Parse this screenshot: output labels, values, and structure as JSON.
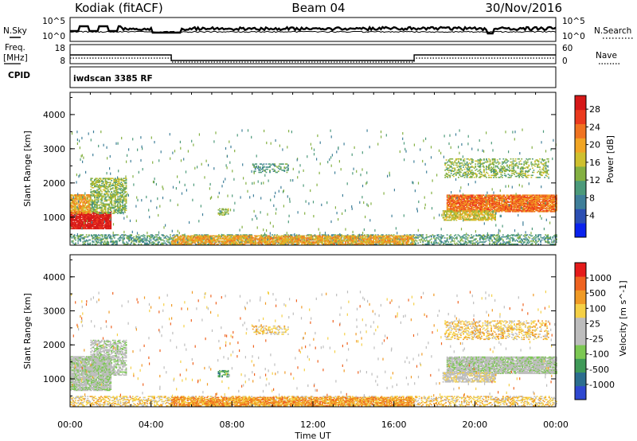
{
  "header": {
    "station": "Kodiak (fitACF)",
    "beam": "Beam 04",
    "date": "30/Nov/2016"
  },
  "noise_panel": {
    "left_label": "N.Sky",
    "right_label": "N.Search",
    "left_ticks": [
      "10^5",
      "10^0"
    ],
    "right_ticks": [
      "10^5",
      "10^0"
    ]
  },
  "freq_panel": {
    "left_label_1": "Freq.",
    "left_label_2": "[MHz]",
    "right_label": "Nave",
    "left_ticks": [
      "18",
      "8"
    ],
    "right_ticks": [
      "60",
      "0"
    ],
    "freq_steps": [
      {
        "start_h": 0,
        "end_h": 5,
        "level": "high"
      },
      {
        "start_h": 5,
        "end_h": 17,
        "level": "low"
      },
      {
        "start_h": 17,
        "end_h": 24,
        "level": "high"
      }
    ]
  },
  "cpid_panel": {
    "label": "CPID",
    "program": "iwdscan 3385 RF"
  },
  "chart_data": [
    {
      "type": "heatmap",
      "name": "Power",
      "ylabel": "Slant Range [km]",
      "colorbar_label": "Power [dB]",
      "xlim": [
        0,
        24
      ],
      "ylim": [
        180,
        4650
      ],
      "yticks": [
        "1000",
        "2000",
        "3000",
        "4000"
      ],
      "colorbar_ticks": [
        "28",
        "24",
        "20",
        "16",
        "12",
        "8",
        "4"
      ],
      "colorbar_colors": [
        "#0a22ee",
        "#2c4fb3",
        "#3f7f9a",
        "#4c9a7a",
        "#84b042",
        "#cfc02e",
        "#f1a524",
        "#f07321",
        "#eb3a1e",
        "#d61818"
      ],
      "regions": [
        {
          "t0": 0.0,
          "t1": 2.0,
          "r0": 650,
          "r1": 1150,
          "level": 9,
          "density": 0.95
        },
        {
          "t0": 0.0,
          "t1": 1.0,
          "r0": 1100,
          "r1": 1650,
          "level": 6,
          "density": 0.8
        },
        {
          "t0": 1.0,
          "t1": 2.8,
          "r0": 1100,
          "r1": 2150,
          "level": 4,
          "density": 0.6
        },
        {
          "t0": 0.0,
          "t1": 24.0,
          "r0": 200,
          "r1": 500,
          "level": 3,
          "density": 0.45
        },
        {
          "t0": 5.0,
          "t1": 17.0,
          "r0": 200,
          "r1": 450,
          "level": 6,
          "density": 0.7
        },
        {
          "t0": 18.6,
          "t1": 24.0,
          "r0": 1150,
          "r1": 1650,
          "level": 7,
          "density": 0.9
        },
        {
          "t0": 18.4,
          "t1": 21.0,
          "r0": 900,
          "r1": 1200,
          "level": 5,
          "density": 0.7
        },
        {
          "t0": 18.5,
          "t1": 23.6,
          "r0": 2150,
          "r1": 2700,
          "level": 4,
          "density": 0.35
        },
        {
          "t0": 9.0,
          "t1": 10.8,
          "r0": 2300,
          "r1": 2550,
          "level": 3,
          "density": 0.4
        },
        {
          "t0": 7.3,
          "t1": 7.8,
          "r0": 1050,
          "r1": 1250,
          "level": 4,
          "density": 0.6
        }
      ]
    },
    {
      "type": "heatmap",
      "name": "Velocity",
      "ylabel": "Slant Range [km]",
      "colorbar_label": "Velocity [m s^-1]",
      "xlabel": "Time UT",
      "xlim": [
        0,
        24
      ],
      "ylim": [
        180,
        4650
      ],
      "xticks": [
        "00:00",
        "04:00",
        "08:00",
        "12:00",
        "16:00",
        "20:00",
        "00:00"
      ],
      "yticks": [
        "1000",
        "2000",
        "3000",
        "4000"
      ],
      "colorbar_ticks": [
        "1000",
        "500",
        "100",
        "25",
        "-25",
        "-100",
        "-500",
        "-1000"
      ],
      "colorbar_colors": [
        "#2f48d0",
        "#2c6e8f",
        "#3f9a58",
        "#7cc853",
        "#bdbdbd",
        "#bdbdbd",
        "#f5d046",
        "#f09a25",
        "#ef6320",
        "#e51b1b"
      ],
      "regions": [
        {
          "t0": 0.0,
          "t1": 2.0,
          "r0": 650,
          "r1": 1650,
          "level": 4,
          "density": 0.9
        },
        {
          "t0": 1.0,
          "t1": 2.8,
          "r0": 1100,
          "r1": 2150,
          "level": 4,
          "density": 0.6
        },
        {
          "t0": 0.0,
          "t1": 24.0,
          "r0": 200,
          "r1": 500,
          "level": 6,
          "density": 0.45
        },
        {
          "t0": 5.0,
          "t1": 17.0,
          "r0": 200,
          "r1": 450,
          "level": 7,
          "density": 0.7
        },
        {
          "t0": 18.6,
          "t1": 24.0,
          "r0": 1150,
          "r1": 1650,
          "level": 4,
          "density": 0.9
        },
        {
          "t0": 18.4,
          "t1": 21.0,
          "r0": 900,
          "r1": 1200,
          "level": 5,
          "density": 0.7
        },
        {
          "t0": 18.5,
          "t1": 23.6,
          "r0": 2150,
          "r1": 2700,
          "level": 6,
          "density": 0.35
        },
        {
          "t0": 9.0,
          "t1": 10.8,
          "r0": 2300,
          "r1": 2550,
          "level": 6,
          "density": 0.4
        },
        {
          "t0": 7.3,
          "t1": 7.8,
          "r0": 1050,
          "r1": 1250,
          "level": 2,
          "density": 0.6
        }
      ]
    }
  ]
}
